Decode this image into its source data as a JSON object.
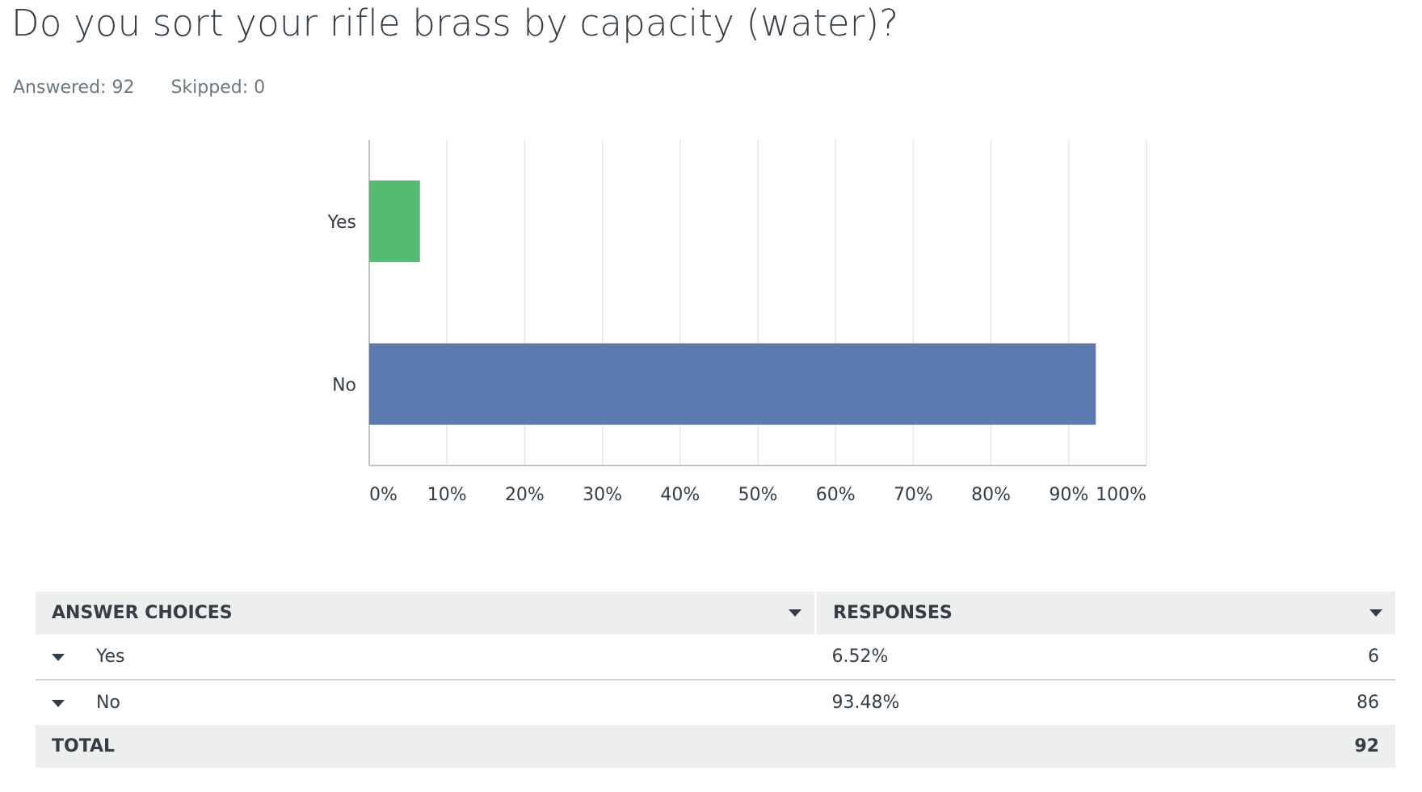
{
  "question": {
    "title": "Do you sort your rifle brass by capacity (water)?",
    "answered": "Answered: 92",
    "skipped": "Skipped: 0"
  },
  "colors": {
    "yes_bar": "#55bb73",
    "no_bar": "#5b7bb0",
    "gridline": "#e3e5e6",
    "axis": "#bfc4c7"
  },
  "chart_data": {
    "type": "bar",
    "orientation": "horizontal",
    "categories": [
      "Yes",
      "No"
    ],
    "values": [
      6.52,
      93.48
    ],
    "colors": [
      "#55bb73",
      "#5b7bb0"
    ],
    "xlim": [
      0,
      100
    ],
    "ticks": [
      "0%",
      "10%",
      "20%",
      "30%",
      "40%",
      "50%",
      "60%",
      "70%",
      "80%",
      "90%",
      "100%"
    ],
    "grid": true
  },
  "table": {
    "headers": {
      "choices": "ANSWER CHOICES",
      "responses": "RESPONSES"
    },
    "rows": [
      {
        "choice": "Yes",
        "percent": "6.52%",
        "count": "6"
      },
      {
        "choice": "No",
        "percent": "93.48%",
        "count": "86"
      }
    ],
    "total_label": "TOTAL",
    "total_count": "92"
  }
}
